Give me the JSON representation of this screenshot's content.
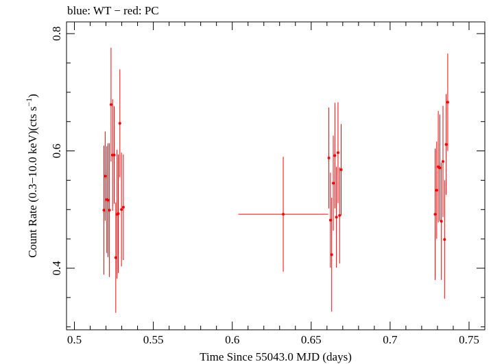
{
  "chart_data": {
    "type": "scatter",
    "title": "blue: WT − red: PC",
    "xlabel": "Time Since 55043.0 MJD (days)",
    "ylabel_main": "Count Rate (0.3−10.0 keV)(cts s",
    "ylabel_sup": "−1",
    "ylabel_close": ")",
    "xlim": [
      0.495,
      0.76
    ],
    "ylim": [
      0.295,
      0.82
    ],
    "xticks": [
      0.5,
      0.55,
      0.6,
      0.65,
      0.7,
      0.75
    ],
    "xtick_labels": [
      "0.5",
      "0.55",
      "0.6",
      "0.65",
      "0.7",
      "0.75"
    ],
    "yticks": [
      0.4,
      0.6,
      0.8
    ],
    "ytick_labels": [
      "0.4",
      "0.6",
      "0.8"
    ],
    "xminor": 0.01,
    "yminor": 0.05,
    "grid": false,
    "series": [
      {
        "name": "PC",
        "color": "#ff0000",
        "points": [
          {
            "x": 0.5187,
            "y": 0.499,
            "yerr": 0.11,
            "xerr": 0
          },
          {
            "x": 0.5195,
            "y": 0.557,
            "yerr": 0.076,
            "xerr": 0
          },
          {
            "x": 0.5205,
            "y": 0.517,
            "yerr": 0.091,
            "xerr": 0
          },
          {
            "x": 0.5213,
            "y": 0.516,
            "yerr": 0.097,
            "xerr": 0
          },
          {
            "x": 0.5222,
            "y": 0.499,
            "yerr": 0.114,
            "xerr": 0
          },
          {
            "x": 0.5232,
            "y": 0.679,
            "yerr": 0.097,
            "xerr": 0
          },
          {
            "x": 0.5242,
            "y": 0.593,
            "yerr": 0.095,
            "xerr": 0
          },
          {
            "x": 0.5252,
            "y": 0.593,
            "yerr": 0.083,
            "xerr": 0
          },
          {
            "x": 0.5262,
            "y": 0.418,
            "yerr": 0.094,
            "xerr": 0
          },
          {
            "x": 0.527,
            "y": 0.492,
            "yerr": 0.11,
            "xerr": 0
          },
          {
            "x": 0.5278,
            "y": 0.493,
            "yerr": 0.101,
            "xerr": 0
          },
          {
            "x": 0.5288,
            "y": 0.647,
            "yerr": 0.092,
            "xerr": 0
          },
          {
            "x": 0.5298,
            "y": 0.5,
            "yerr": 0.097,
            "xerr": 0
          },
          {
            "x": 0.531,
            "y": 0.504,
            "yerr": 0.09,
            "xerr": 0
          },
          {
            "x": 0.6323,
            "y": 0.492,
            "yerr": 0.098,
            "xerr": 0.0285
          },
          {
            "x": 0.6612,
            "y": 0.588,
            "yerr": 0.086,
            "xerr": 0
          },
          {
            "x": 0.6622,
            "y": 0.482,
            "yerr": 0.081,
            "xerr": 0
          },
          {
            "x": 0.663,
            "y": 0.423,
            "yerr": 0.097,
            "xerr": 0
          },
          {
            "x": 0.664,
            "y": 0.545,
            "yerr": 0.081,
            "xerr": 0
          },
          {
            "x": 0.665,
            "y": 0.592,
            "yerr": 0.09,
            "xerr": 0
          },
          {
            "x": 0.666,
            "y": 0.487,
            "yerr": 0.086,
            "xerr": 0
          },
          {
            "x": 0.667,
            "y": 0.597,
            "yerr": 0.086,
            "xerr": 0
          },
          {
            "x": 0.668,
            "y": 0.49,
            "yerr": 0.082,
            "xerr": 0
          },
          {
            "x": 0.669,
            "y": 0.568,
            "yerr": 0.078,
            "xerr": 0
          },
          {
            "x": 0.7285,
            "y": 0.492,
            "yerr": 0.112,
            "xerr": 0
          },
          {
            "x": 0.7295,
            "y": 0.533,
            "yerr": 0.083,
            "xerr": 0
          },
          {
            "x": 0.7305,
            "y": 0.573,
            "yerr": 0.095,
            "xerr": 0
          },
          {
            "x": 0.7315,
            "y": 0.571,
            "yerr": 0.091,
            "xerr": 0
          },
          {
            "x": 0.7325,
            "y": 0.48,
            "yerr": 0.1,
            "xerr": 0
          },
          {
            "x": 0.7335,
            "y": 0.582,
            "yerr": 0.095,
            "xerr": 0
          },
          {
            "x": 0.7345,
            "y": 0.449,
            "yerr": 0.101,
            "xerr": 0
          },
          {
            "x": 0.7355,
            "y": 0.611,
            "yerr": 0.086,
            "xerr": 0
          },
          {
            "x": 0.7365,
            "y": 0.683,
            "yerr": 0.083,
            "xerr": 0
          }
        ]
      }
    ]
  }
}
